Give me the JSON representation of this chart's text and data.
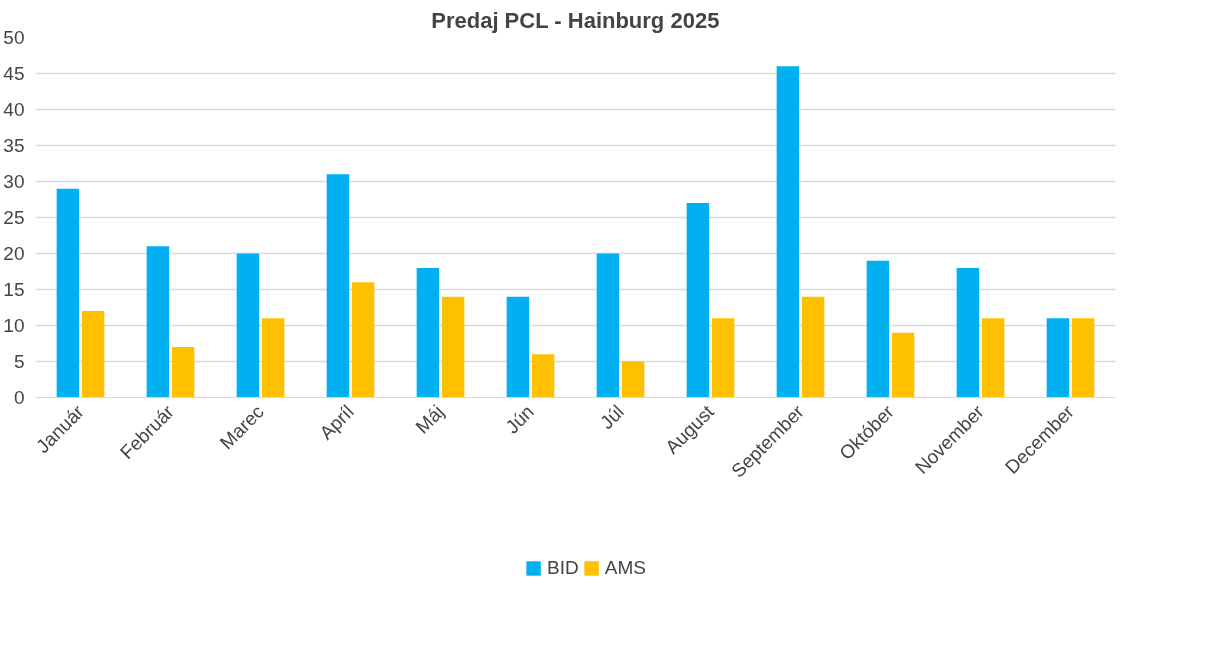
{
  "chart_data": {
    "type": "bar",
    "title": "Predaj PCL - Hainburg 2025",
    "categories": [
      "Január",
      "Február",
      "Marec",
      "Apríl",
      "Máj",
      "Jún",
      "Júl",
      "August",
      "September",
      "Október",
      "November",
      "December"
    ],
    "series": [
      {
        "name": "BID",
        "color": "#00b0f0",
        "values": [
          29,
          21,
          20,
          31,
          18,
          14,
          20,
          27,
          46,
          19,
          18,
          11
        ]
      },
      {
        "name": "AMS",
        "color": "#ffc000",
        "values": [
          12,
          7,
          11,
          16,
          14,
          6,
          5,
          11,
          14,
          9,
          11,
          11
        ]
      }
    ],
    "ylim": [
      0,
      50
    ],
    "yticks": [
      0,
      5,
      10,
      15,
      20,
      25,
      30,
      35,
      40,
      45,
      50
    ],
    "grid": "y",
    "legend": "bottom"
  }
}
